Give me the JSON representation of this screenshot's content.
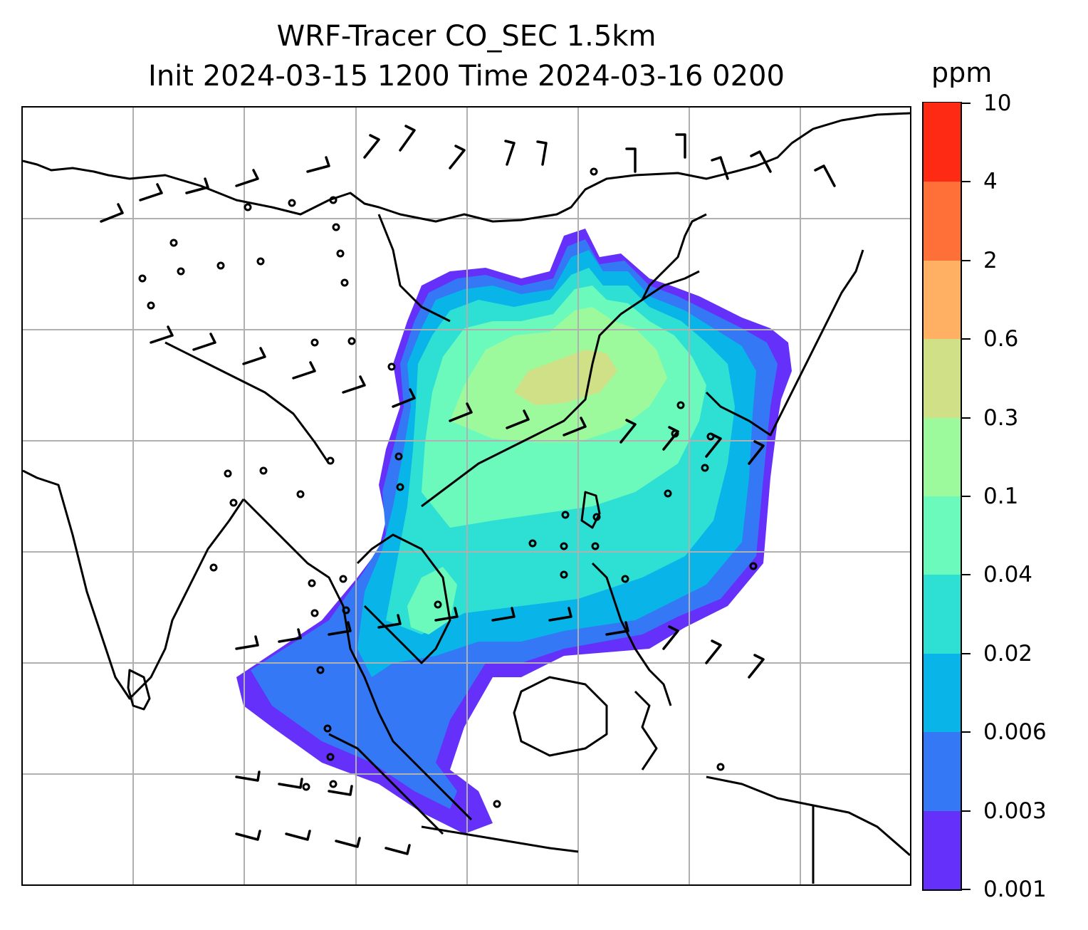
{
  "title": {
    "line1": "WRF-Tracer CO_SEC 1.5km",
    "line2": "Init 2024-03-15 1200 Time 2024-03-16 0200"
  },
  "colorbar": {
    "unit": "ppm",
    "levels": [
      "0.001",
      "0.003",
      "0.006",
      "0.02",
      "0.04",
      "0.1",
      "0.3",
      "0.6",
      "2",
      "4",
      "10"
    ],
    "colors": [
      "#6430fa",
      "#3478f5",
      "#08b4e8",
      "#2ee0d4",
      "#6cfabc",
      "#9cfa9c",
      "#cfe087",
      "#ffb062",
      "#ff7038",
      "#ff2a14"
    ]
  },
  "map": {
    "gridlines": true,
    "colors": {
      "coast": "#000000",
      "grid": "#b0b0b0"
    }
  }
}
